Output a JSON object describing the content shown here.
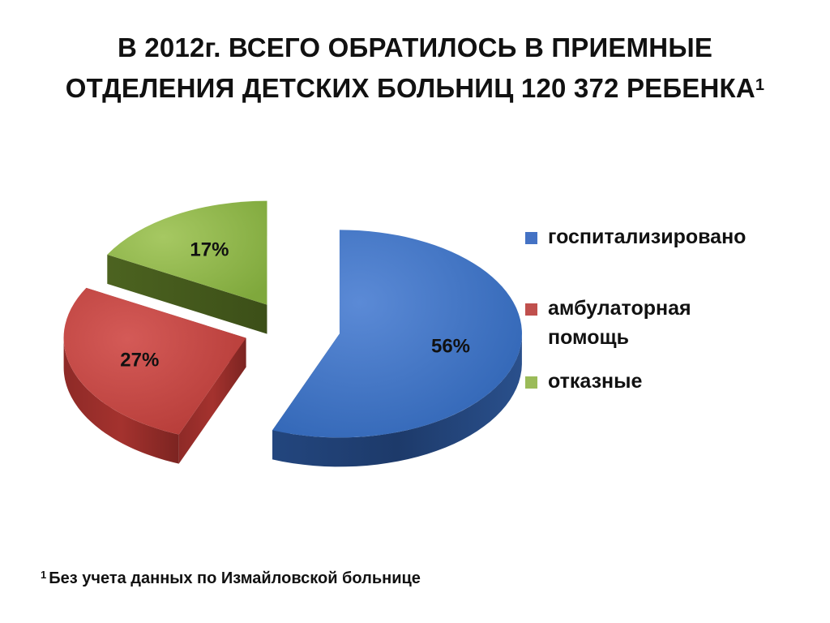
{
  "title": {
    "line1": "В 2012г. ВСЕГО ОБРАТИЛОСЬ В ПРИЕМНЫЕ",
    "line2": "ОТДЕЛЕНИЯ ДЕТСКИХ БОЛЬНИЦ 120 372 РЕБЕНКА",
    "sup": "1"
  },
  "chart_data": {
    "type": "pie",
    "exploded": true,
    "three_d": true,
    "labels": [
      "госпитализировано",
      "амбулаторная помощь",
      "отказные"
    ],
    "values": [
      56,
      27,
      17
    ],
    "data_labels": [
      "56%",
      "27%",
      "17%"
    ],
    "colors": [
      "#4472C4",
      "#C0504D",
      "#9BBB59"
    ],
    "legend": {
      "position": "right",
      "items": [
        {
          "lines": [
            "госпитализировано"
          ],
          "color": "#4472C4"
        },
        {
          "lines": [
            "амбулаторная",
            "помощь"
          ],
          "color": "#C0504D"
        },
        {
          "lines": [
            "отказные"
          ],
          "color": "#9BBB59"
        }
      ]
    }
  },
  "footnote": {
    "sup": "1",
    "text": "Без учета данных по Измайловской больнице"
  }
}
